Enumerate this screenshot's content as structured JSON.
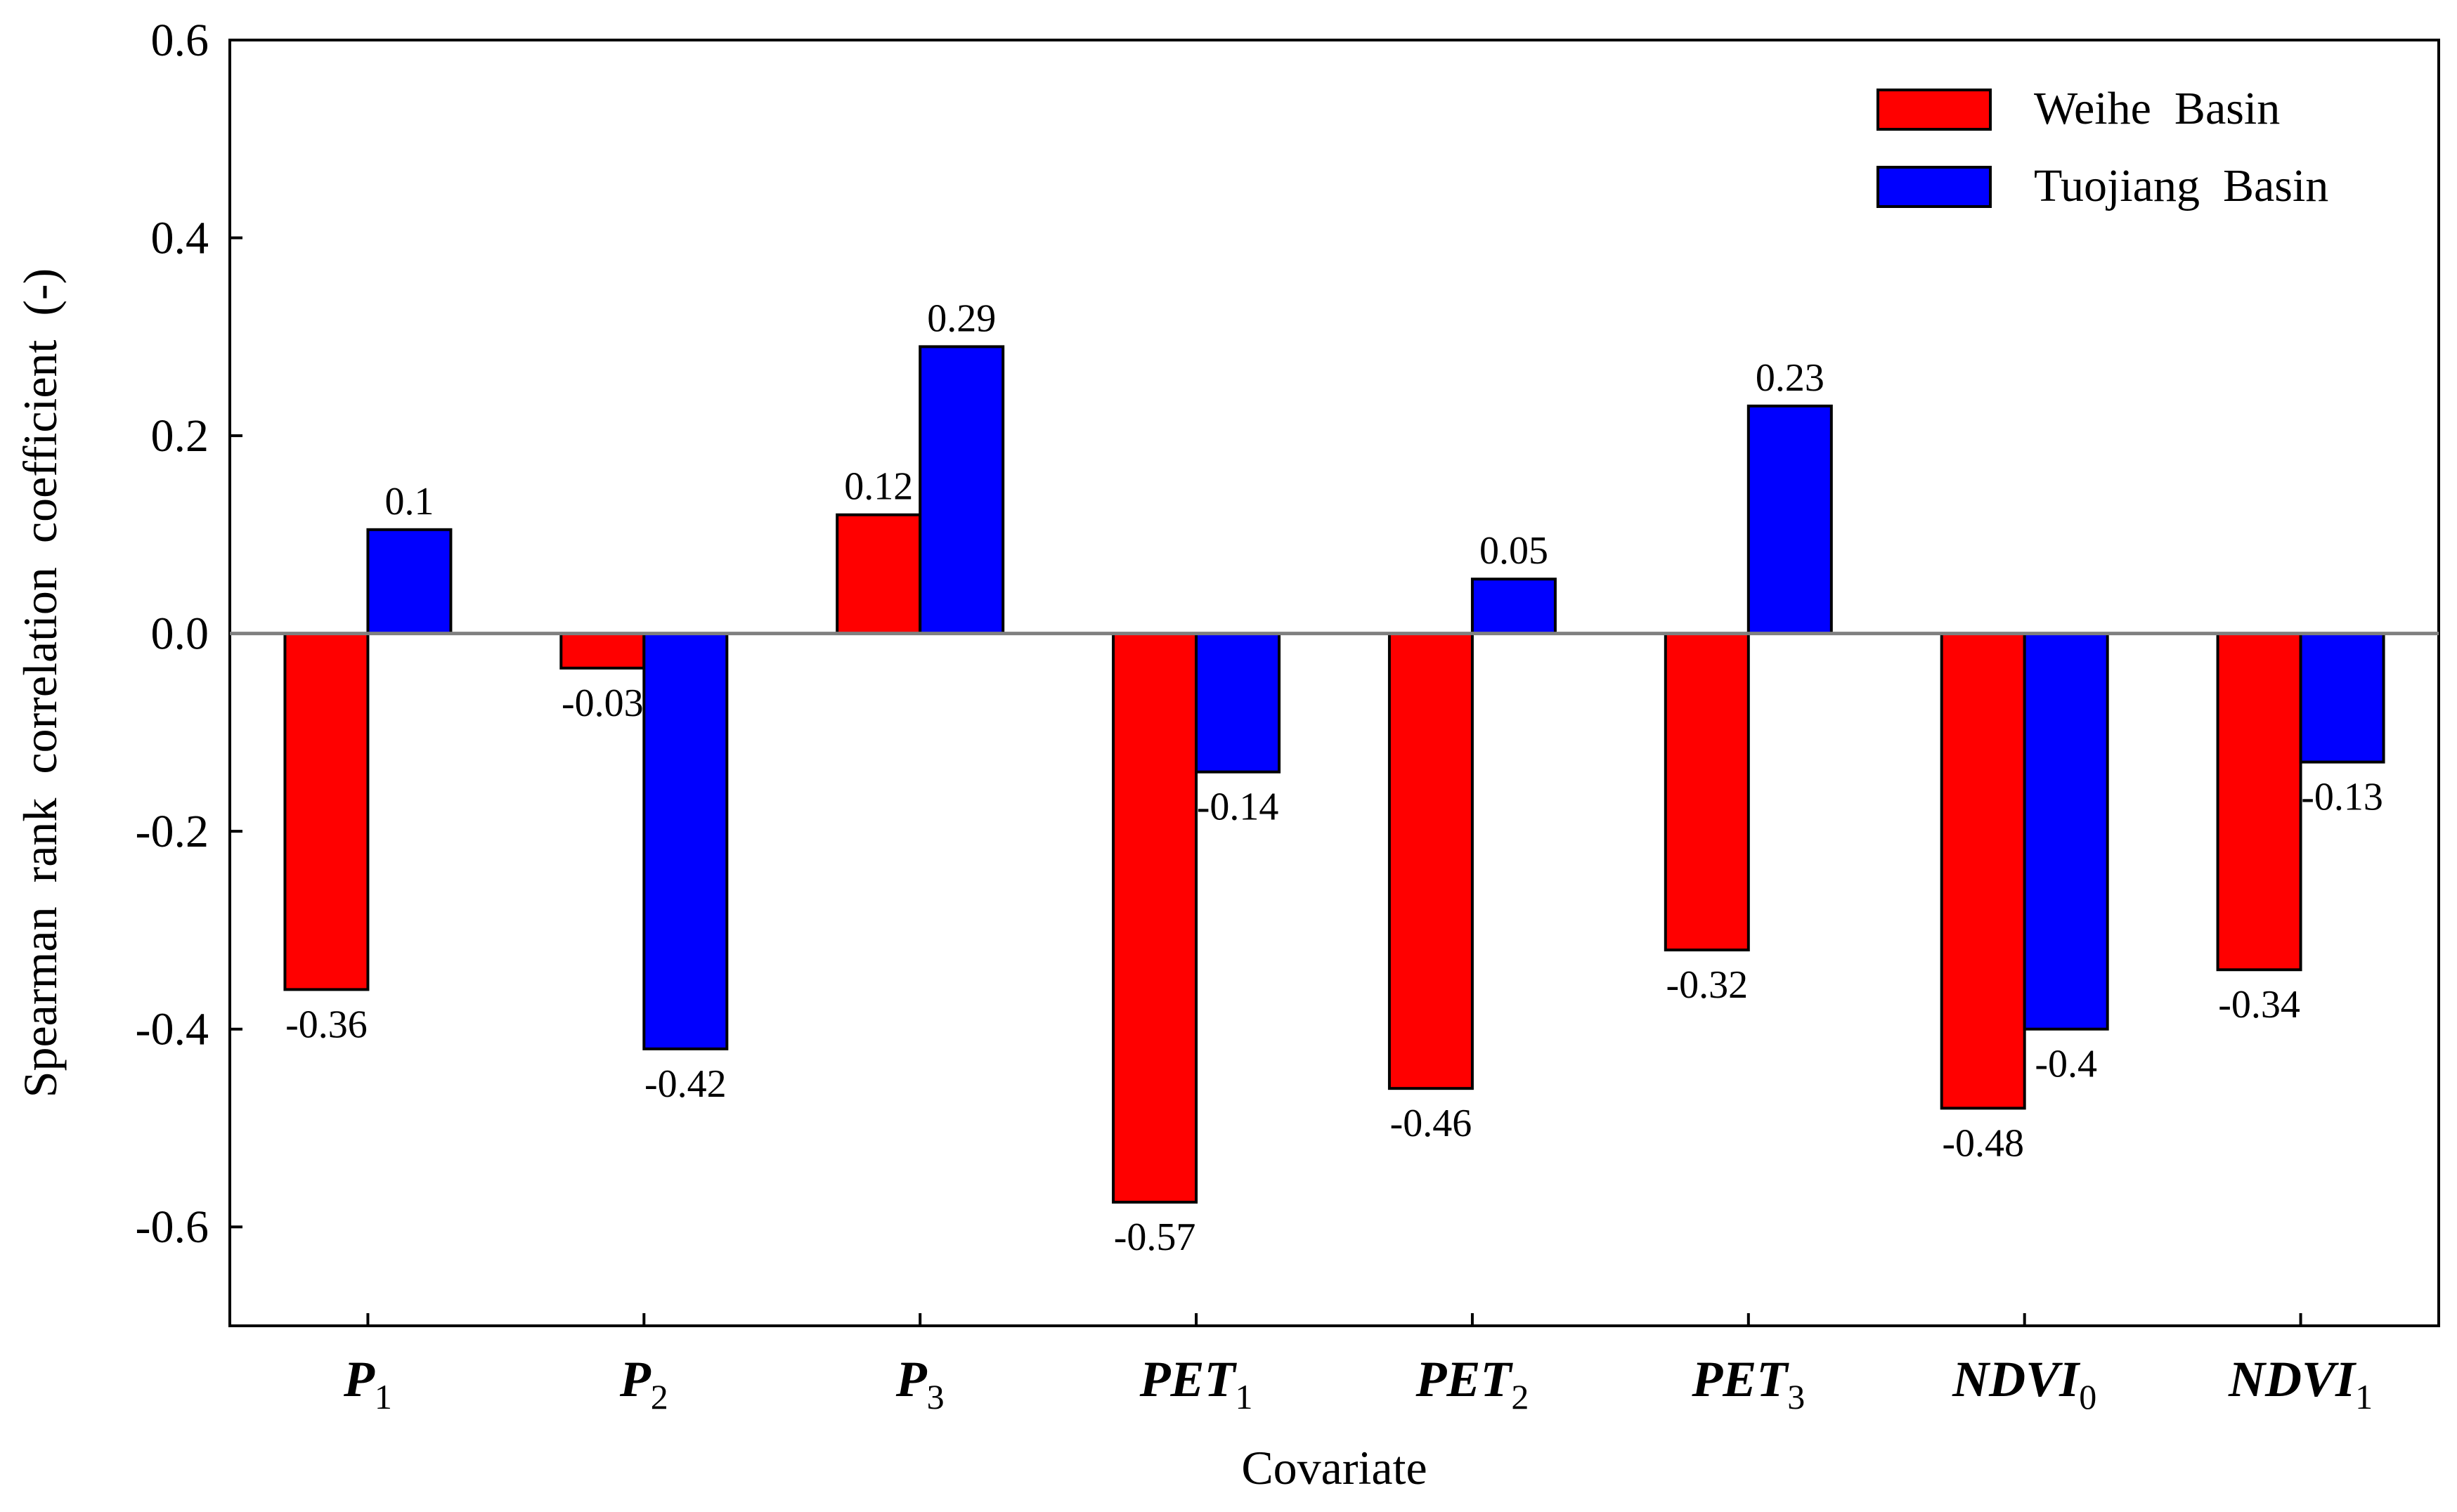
{
  "chart_data": {
    "type": "bar",
    "title": "",
    "xlabel": "Covariate",
    "ylabel": "Spearman  rank  correlation  coefficient  (-)",
    "ylim": [
      -0.7,
      0.6
    ],
    "yticks": [
      0.6,
      0.4,
      0.2,
      0.0,
      -0.2,
      -0.4,
      -0.6
    ],
    "ytick_labels": [
      "0.6",
      "0.4",
      "0.2",
      "0.0",
      "-0.2",
      "-0.4",
      "-0.6"
    ],
    "categories": [
      {
        "base": "P",
        "sub": "1"
      },
      {
        "base": "P",
        "sub": "2"
      },
      {
        "base": "P",
        "sub": "3"
      },
      {
        "base": "PET",
        "sub": "1"
      },
      {
        "base": "PET",
        "sub": "2"
      },
      {
        "base": "PET",
        "sub": "3"
      },
      {
        "base": "NDVI",
        "sub": "0"
      },
      {
        "base": "NDVI",
        "sub": "1"
      }
    ],
    "series": [
      {
        "name": "Weihe  Basin",
        "color": "#ff0000",
        "values": [
          -0.36,
          -0.035,
          0.12,
          -0.575,
          -0.46,
          -0.32,
          -0.48,
          -0.34
        ],
        "labels": [
          "-0.36",
          "-0.03",
          "0.12",
          "-0.57",
          "-0.46",
          "-0.32",
          "-0.48",
          "-0.34"
        ]
      },
      {
        "name": "Tuojiang  Basin",
        "color": "#0000ff",
        "values": [
          0.105,
          -0.42,
          0.29,
          -0.14,
          0.055,
          0.23,
          -0.4,
          -0.13
        ],
        "labels": [
          "0.1",
          "-0.42",
          "0.29",
          "-0.14",
          "0.05",
          "0.23",
          "-0.4",
          "-0.13"
        ]
      }
    ],
    "legend_position": "top-right",
    "zero_line_color": "#808080"
  }
}
